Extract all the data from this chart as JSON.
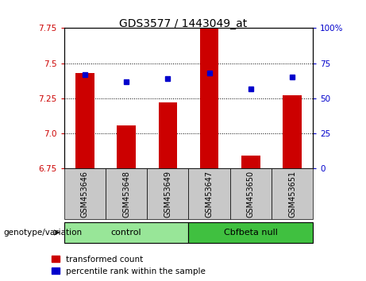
{
  "title": "GDS3577 / 1443049_at",
  "samples": [
    "GSM453646",
    "GSM453648",
    "GSM453649",
    "GSM453647",
    "GSM453650",
    "GSM453651"
  ],
  "transformed_count": [
    7.43,
    7.06,
    7.22,
    7.75,
    6.84,
    7.27
  ],
  "percentile_rank": [
    67,
    62,
    64,
    68,
    57,
    65
  ],
  "ylim_left": [
    6.75,
    7.75
  ],
  "ylim_right": [
    0,
    100
  ],
  "yticks_left": [
    6.75,
    7.0,
    7.25,
    7.5,
    7.75
  ],
  "yticks_right": [
    0,
    25,
    50,
    75,
    100
  ],
  "ytick_labels_right": [
    "0",
    "25",
    "50",
    "75",
    "100%"
  ],
  "groups": [
    {
      "label": "control",
      "indices": [
        0,
        1,
        2
      ],
      "color": "#98e698"
    },
    {
      "label": "Cbfbeta null",
      "indices": [
        3,
        4,
        5
      ],
      "color": "#40c040"
    }
  ],
  "bar_color": "#cc0000",
  "dot_color": "#0000cc",
  "left_axis_color": "#cc0000",
  "right_axis_color": "#0000cc",
  "background_plot": "#ffffff",
  "background_label": "#c8c8c8",
  "legend_items": [
    "transformed count",
    "percentile rank within the sample"
  ],
  "xlabel_group": "genotype/variation"
}
